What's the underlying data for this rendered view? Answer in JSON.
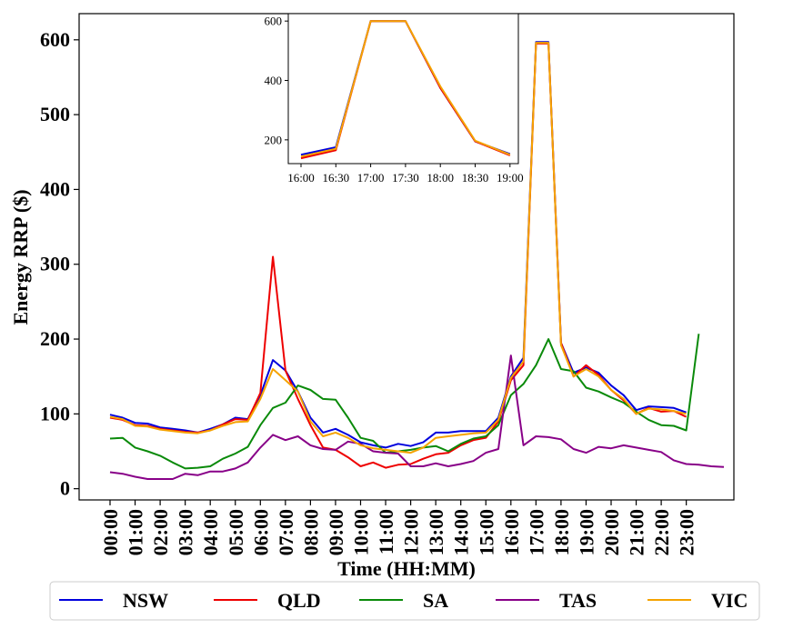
{
  "chart_data": {
    "type": "line",
    "xlabel": "Time (HH:MM)",
    "ylabel": "Energy RRP ($)",
    "ylim": [
      -15,
      635
    ],
    "yticks": [
      0,
      100,
      200,
      300,
      400,
      500,
      600
    ],
    "xtick_labels": [
      "00:00",
      "01:00",
      "02:00",
      "03:00",
      "04:00",
      "05:00",
      "06:00",
      "07:00",
      "08:00",
      "09:00",
      "10:00",
      "11:00",
      "12:00",
      "13:00",
      "14:00",
      "15:00",
      "16:00",
      "17:00",
      "18:00",
      "19:00",
      "20:00",
      "21:00",
      "22:00",
      "23:00"
    ],
    "legend_position": "bottom",
    "series": [
      {
        "name": "NSW",
        "color": "#0000dd",
        "values": [
          99,
          95,
          88,
          87,
          82,
          80,
          78,
          75,
          80,
          86,
          95,
          93,
          125,
          172,
          158,
          130,
          95,
          75,
          80,
          72,
          62,
          58,
          55,
          60,
          57,
          62,
          75,
          75,
          77,
          77,
          77,
          95,
          150,
          175,
          597,
          597,
          195,
          155,
          162,
          155,
          138,
          125,
          105,
          110,
          109,
          108,
          102
        ]
      },
      {
        "name": "QLD",
        "color": "#ee0000",
        "values": [
          95,
          92,
          85,
          84,
          80,
          78,
          76,
          75,
          78,
          86,
          93,
          92,
          128,
          310,
          158,
          120,
          85,
          55,
          52,
          42,
          30,
          35,
          28,
          32,
          33,
          40,
          46,
          48,
          58,
          65,
          68,
          90,
          145,
          165,
          595,
          595,
          195,
          150,
          165,
          152,
          132,
          118,
          100,
          108,
          103,
          104,
          96
        ]
      },
      {
        "name": "SA",
        "color": "#0a8a0a",
        "values": [
          67,
          68,
          55,
          50,
          44,
          35,
          27,
          28,
          30,
          40,
          47,
          56,
          85,
          108,
          115,
          138,
          132,
          120,
          119,
          95,
          68,
          64,
          48,
          50,
          52,
          55,
          57,
          50,
          60,
          67,
          70,
          85,
          125,
          140,
          165,
          200,
          160,
          157,
          135,
          130,
          122,
          115,
          103,
          92,
          85,
          84,
          78,
          207
        ]
      },
      {
        "name": "TAS",
        "color": "#880088",
        "values": [
          22,
          20,
          16,
          13,
          13,
          13,
          20,
          18,
          23,
          23,
          27,
          35,
          55,
          72,
          65,
          70,
          58,
          53,
          52,
          63,
          60,
          50,
          48,
          47,
          30,
          30,
          34,
          30,
          33,
          37,
          48,
          53,
          178,
          58,
          70,
          69,
          66,
          53,
          48,
          56,
          54,
          58,
          55,
          52,
          49,
          38,
          33,
          32,
          30,
          29
        ]
      },
      {
        "name": "VIC",
        "color": "#f5a300",
        "values": [
          96,
          93,
          84,
          83,
          79,
          77,
          75,
          74,
          78,
          84,
          89,
          90,
          120,
          160,
          145,
          130,
          90,
          70,
          75,
          68,
          58,
          54,
          52,
          50,
          48,
          55,
          68,
          70,
          72,
          74,
          75,
          92,
          148,
          170,
          596,
          596,
          192,
          150,
          160,
          150,
          132,
          120,
          100,
          107,
          106,
          104,
          100
        ]
      }
    ],
    "inset": {
      "xtick_labels": [
        "16:00",
        "16:30",
        "17:00",
        "17:30",
        "18:00",
        "18:30",
        "19:00"
      ],
      "yticks": [
        200,
        400,
        600
      ],
      "ylim": [
        120,
        625
      ],
      "series": [
        {
          "name": "NSW",
          "color": "#0000dd",
          "values": [
            150,
            175,
            600,
            600,
            375,
            195,
            152
          ]
        },
        {
          "name": "QLD",
          "color": "#ee0000",
          "values": [
            138,
            165,
            600,
            600,
            375,
            195,
            148
          ]
        },
        {
          "name": "VIC",
          "color": "#f5a300",
          "values": [
            144,
            170,
            600,
            600,
            380,
            197,
            150
          ]
        }
      ]
    }
  }
}
